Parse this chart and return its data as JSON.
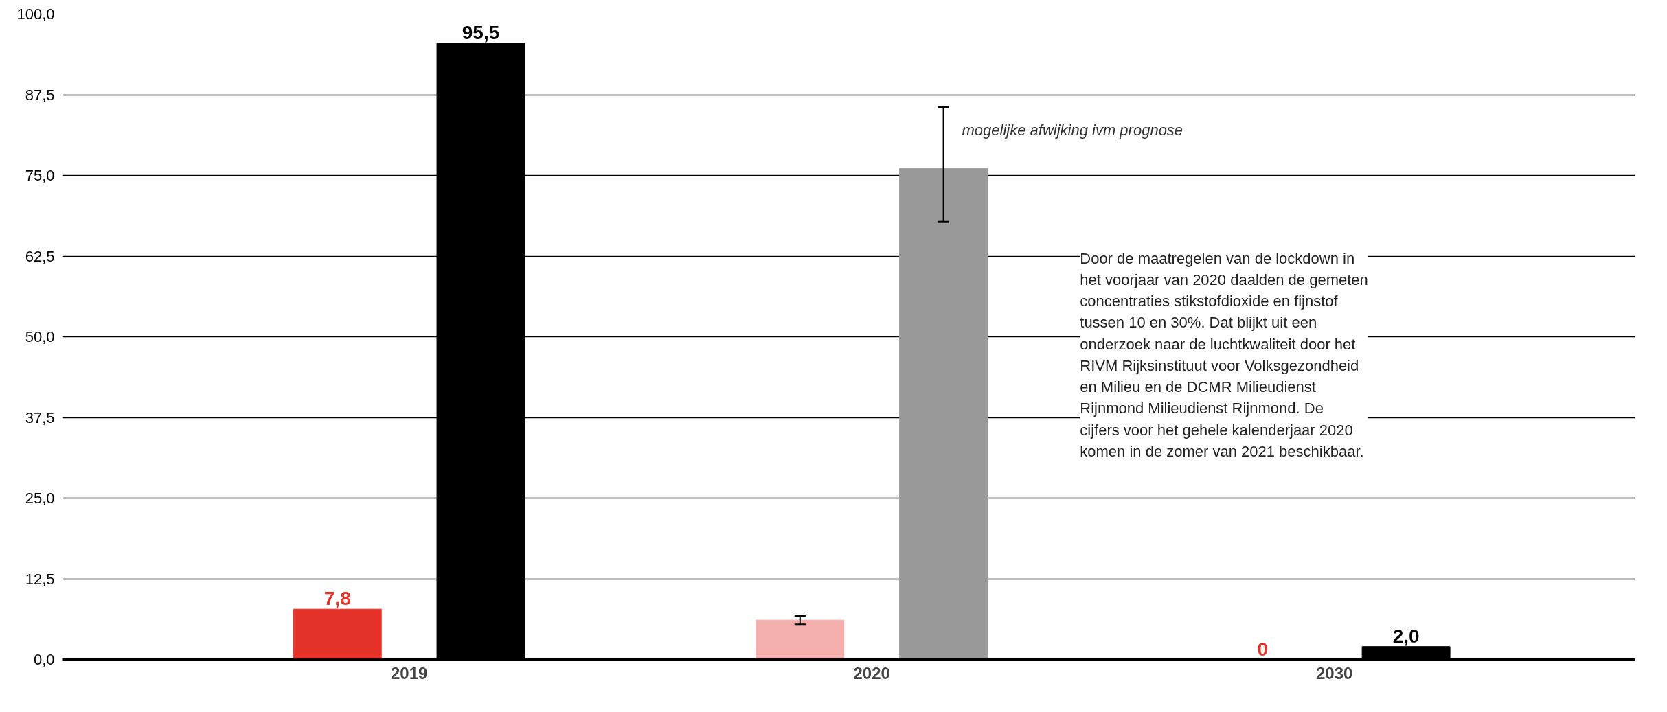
{
  "chart_data": {
    "type": "bar",
    "categories": [
      "2019",
      "2020",
      "2030"
    ],
    "series": [
      {
        "colors": [
          "#e53228",
          "#f4aeab",
          "#e53228"
        ],
        "values": [
          7.8,
          6.1,
          0
        ],
        "errors": [
          null,
          [
            5.4,
            6.8
          ],
          null
        ],
        "value_labels": [
          "7,8",
          null,
          "0"
        ]
      },
      {
        "colors": [
          "#000000",
          "#999999",
          "#000000"
        ],
        "values": [
          95.5,
          76.1,
          2.0
        ],
        "errors": [
          null,
          [
            67.8,
            85.6
          ],
          null
        ],
        "value_labels": [
          "95,5",
          null,
          "2,0"
        ]
      }
    ],
    "ylim": [
      0,
      100
    ],
    "yticks": [
      {
        "value": 0,
        "label": "0,0"
      },
      {
        "value": 12.5,
        "label": "12,5"
      },
      {
        "value": 25,
        "label": "25,0"
      },
      {
        "value": 37.5,
        "label": "37,5"
      },
      {
        "value": 50,
        "label": "50,0"
      },
      {
        "value": 62.5,
        "label": "62,5"
      },
      {
        "value": 75,
        "label": "75,0"
      },
      {
        "value": 87.5,
        "label": "87,5"
      },
      {
        "value": 100,
        "label": "100,0"
      }
    ],
    "grid": "y",
    "annotations": [
      "mogelijke afwijking ivm prognose",
      "Door de maatregelen van de lockdown in het voorjaar van 2020 daalden de gemeten concentraties stikstofdioxide en fijnstof tussen 10 en 30%. Dat blijkt uit een onderzoek naar de luchtkwaliteit door het RIVM Rijksinstituut voor Volksgezondheid en Milieu en de DCMR Milieudienst Rijnmond Milieudienst Rijnmond. De cijfers voor het gehele kalenderjaar 2020 komen in de zomer van 2021 beschikbaar."
    ]
  }
}
